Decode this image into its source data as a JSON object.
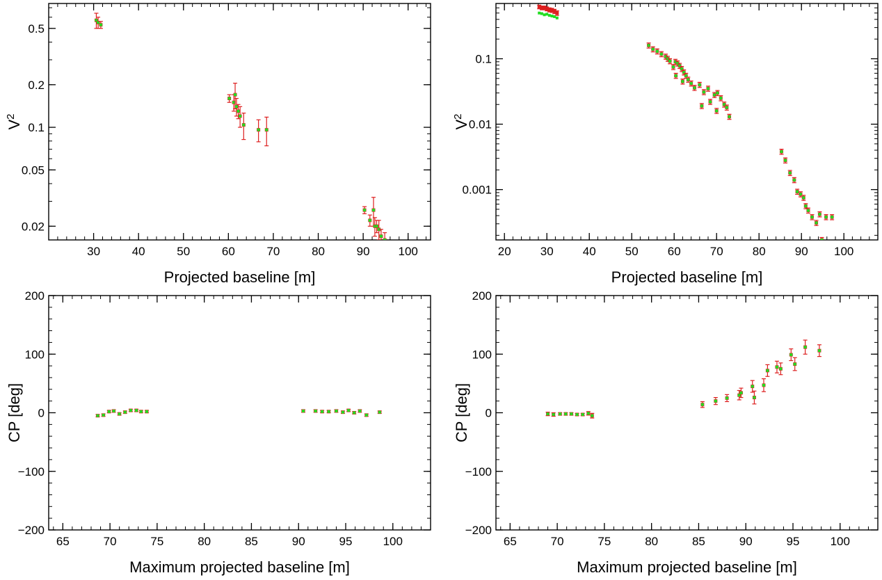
{
  "colors": {
    "model": "#22dd22",
    "observed": "#dd1f1f",
    "axes": "#000000"
  },
  "chart_data": [
    {
      "type": "scatter",
      "panel": "top-left",
      "xlabel": "Projected baseline [m]",
      "ylabel": "V²",
      "ylabel_text": "V",
      "ylabel_sup": "2",
      "yscale": "log",
      "xlim": [
        20,
        105
      ],
      "ylim": [
        0.016,
        0.75
      ],
      "xticks": [
        30,
        40,
        50,
        60,
        70,
        80,
        90,
        100
      ],
      "xtick_labels": [
        "30",
        "40",
        "50",
        "60",
        "70",
        "80",
        "90",
        "100"
      ],
      "yticks": [
        0.02,
        0.05,
        0.1,
        0.2,
        0.5
      ],
      "ytick_labels": [
        "0.02",
        "0.05",
        "0.1",
        "0.2",
        "0.5"
      ],
      "series": [
        {
          "points": [
            {
              "x": 30.6,
              "y": 0.57,
              "err": 0.07
            },
            {
              "x": 31.0,
              "y": 0.55,
              "err": 0.05
            },
            {
              "x": 31.6,
              "y": 0.53,
              "err": 0.03
            },
            {
              "x": 60.2,
              "y": 0.16,
              "err": 0.01
            },
            {
              "x": 61.2,
              "y": 0.15,
              "err": 0.02
            },
            {
              "x": 61.5,
              "y": 0.17,
              "err": 0.035
            },
            {
              "x": 61.8,
              "y": 0.14,
              "err": 0.02
            },
            {
              "x": 62.2,
              "y": 0.13,
              "err": 0.015
            },
            {
              "x": 62.6,
              "y": 0.12,
              "err": 0.02
            },
            {
              "x": 63.4,
              "y": 0.104,
              "err": 0.022
            },
            {
              "x": 66.7,
              "y": 0.096,
              "err": 0.017
            },
            {
              "x": 68.5,
              "y": 0.096,
              "err": 0.022
            },
            {
              "x": 90.3,
              "y": 0.026,
              "err": 0.0015
            },
            {
              "x": 91.5,
              "y": 0.022,
              "err": 0.002
            },
            {
              "x": 92.3,
              "y": 0.026,
              "err": 0.006
            },
            {
              "x": 92.6,
              "y": 0.02,
              "err": 0.003
            },
            {
              "x": 93.0,
              "y": 0.02,
              "err": 0.002
            },
            {
              "x": 93.5,
              "y": 0.019,
              "err": 0.003
            },
            {
              "x": 94.0,
              "y": 0.017,
              "err": 0.002
            },
            {
              "x": 94.8,
              "y": 0.016,
              "err": 0.002
            }
          ]
        }
      ]
    },
    {
      "type": "scatter",
      "panel": "top-right",
      "xlabel": "Projected baseline [m]",
      "ylabel": "V²",
      "ylabel_text": "V",
      "ylabel_sup": "2",
      "yscale": "log",
      "xlim": [
        18,
        108
      ],
      "ylim": [
        0.00017,
        0.7
      ],
      "xticks": [
        20,
        30,
        40,
        50,
        60,
        70,
        80,
        90,
        100
      ],
      "xtick_labels": [
        "20",
        "30",
        "40",
        "50",
        "60",
        "70",
        "80",
        "90",
        "100"
      ],
      "yticks": [
        0.001,
        0.01,
        0.1
      ],
      "ytick_labels": [
        "0.001",
        "0.01",
        "0.1"
      ],
      "series": [
        {
          "points": [
            {
              "x": 28.2,
              "y": 0.62,
              "err": 0.04,
              "mx": 28.2,
              "my": 0.5
            },
            {
              "x": 28.8,
              "y": 0.6,
              "err": 0.04,
              "mx": 28.8,
              "my": 0.49
            },
            {
              "x": 29.4,
              "y": 0.6,
              "err": 0.04,
              "mx": 29.4,
              "my": 0.47
            },
            {
              "x": 30.0,
              "y": 0.58,
              "err": 0.04,
              "mx": 30.0,
              "my": 0.48
            },
            {
              "x": 30.6,
              "y": 0.56,
              "err": 0.04,
              "mx": 30.6,
              "my": 0.46
            },
            {
              "x": 31.2,
              "y": 0.55,
              "err": 0.04,
              "mx": 31.2,
              "my": 0.45
            },
            {
              "x": 31.8,
              "y": 0.53,
              "err": 0.04,
              "mx": 31.8,
              "my": 0.44
            },
            {
              "x": 32.4,
              "y": 0.5,
              "err": 0.04,
              "mx": 32.4,
              "my": 0.42
            },
            {
              "x": 54.0,
              "y": 0.16
            },
            {
              "x": 55.0,
              "y": 0.14
            },
            {
              "x": 56.0,
              "y": 0.13
            },
            {
              "x": 57.0,
              "y": 0.118
            },
            {
              "x": 58.0,
              "y": 0.108
            },
            {
              "x": 58.5,
              "y": 0.1
            },
            {
              "x": 59.0,
              "y": 0.092
            },
            {
              "x": 59.8,
              "y": 0.075
            },
            {
              "x": 60.3,
              "y": 0.09
            },
            {
              "x": 60.8,
              "y": 0.085
            },
            {
              "x": 61.3,
              "y": 0.078
            },
            {
              "x": 61.8,
              "y": 0.07
            },
            {
              "x": 62.3,
              "y": 0.062
            },
            {
              "x": 62.8,
              "y": 0.055
            },
            {
              "x": 63.3,
              "y": 0.048
            },
            {
              "x": 64.0,
              "y": 0.042
            },
            {
              "x": 60.4,
              "y": 0.055
            },
            {
              "x": 62.0,
              "y": 0.045
            },
            {
              "x": 64.8,
              "y": 0.036
            },
            {
              "x": 66.0,
              "y": 0.04
            },
            {
              "x": 67.0,
              "y": 0.031
            },
            {
              "x": 68.0,
              "y": 0.035
            },
            {
              "x": 69.5,
              "y": 0.028
            },
            {
              "x": 70.2,
              "y": 0.03
            },
            {
              "x": 71.0,
              "y": 0.025
            },
            {
              "x": 71.8,
              "y": 0.02
            },
            {
              "x": 72.4,
              "y": 0.018
            },
            {
              "x": 66.5,
              "y": 0.019
            },
            {
              "x": 68.5,
              "y": 0.022
            },
            {
              "x": 70.0,
              "y": 0.016
            },
            {
              "x": 73.0,
              "y": 0.013
            },
            {
              "x": 85.3,
              "y": 0.0038
            },
            {
              "x": 86.2,
              "y": 0.0028
            },
            {
              "x": 87.3,
              "y": 0.0018
            },
            {
              "x": 88.3,
              "y": 0.0014
            },
            {
              "x": 89.0,
              "y": 0.00093
            },
            {
              "x": 89.8,
              "y": 0.00085
            },
            {
              "x": 90.5,
              "y": 0.00075
            },
            {
              "x": 91.0,
              "y": 0.00056
            },
            {
              "x": 91.6,
              "y": 0.00048
            },
            {
              "x": 92.5,
              "y": 0.00038
            },
            {
              "x": 93.5,
              "y": 0.00031
            },
            {
              "x": 94.3,
              "y": 0.00042
            },
            {
              "x": 94.8,
              "y": 0.00017
            },
            {
              "x": 95.8,
              "y": 0.00038
            },
            {
              "x": 97.2,
              "y": 0.00038
            }
          ]
        }
      ]
    },
    {
      "type": "scatter",
      "panel": "bottom-left",
      "xlabel": "Maximum projected baseline [m]",
      "ylabel": "CP [deg]",
      "yscale": "linear",
      "xlim": [
        63.5,
        104
      ],
      "ylim": [
        -200,
        200
      ],
      "xticks": [
        65,
        70,
        75,
        80,
        85,
        90,
        95,
        100
      ],
      "xtick_labels": [
        "65",
        "70",
        "75",
        "80",
        "85",
        "90",
        "95",
        "100"
      ],
      "yticks": [
        -200,
        -100,
        0,
        100,
        200
      ],
      "ytick_labels": [
        "−200",
        "−100",
        "0",
        "100",
        "200"
      ],
      "series": [
        {
          "points": [
            {
              "x": 68.7,
              "y": -5,
              "err": 2
            },
            {
              "x": 69.3,
              "y": -4,
              "err": 2
            },
            {
              "x": 69.9,
              "y": 2,
              "err": 2
            },
            {
              "x": 70.4,
              "y": 3,
              "err": 2
            },
            {
              "x": 71.0,
              "y": -2,
              "err": 2
            },
            {
              "x": 71.6,
              "y": 1,
              "err": 2
            },
            {
              "x": 72.2,
              "y": 4,
              "err": 2
            },
            {
              "x": 72.8,
              "y": 4,
              "err": 2
            },
            {
              "x": 73.3,
              "y": 2,
              "err": 2
            },
            {
              "x": 73.9,
              "y": 2,
              "err": 2
            },
            {
              "x": 90.5,
              "y": 3,
              "err": 2
            },
            {
              "x": 91.8,
              "y": 3,
              "err": 2
            },
            {
              "x": 92.5,
              "y": 2,
              "err": 2
            },
            {
              "x": 93.2,
              "y": 2,
              "err": 2
            },
            {
              "x": 94.0,
              "y": 3,
              "err": 2
            },
            {
              "x": 94.7,
              "y": 1,
              "err": 2
            },
            {
              "x": 95.3,
              "y": 4,
              "err": 2
            },
            {
              "x": 95.9,
              "y": 0,
              "err": 2
            },
            {
              "x": 96.5,
              "y": 3,
              "err": 2
            },
            {
              "x": 97.2,
              "y": -4,
              "err": 2
            },
            {
              "x": 98.6,
              "y": 1,
              "err": 2
            }
          ]
        }
      ]
    },
    {
      "type": "scatter",
      "panel": "bottom-right",
      "xlabel": "Maximum projected baseline [m]",
      "ylabel": "CP [deg]",
      "yscale": "linear",
      "xlim": [
        63.5,
        104
      ],
      "ylim": [
        -200,
        200
      ],
      "xticks": [
        65,
        70,
        75,
        80,
        85,
        90,
        95,
        100
      ],
      "xtick_labels": [
        "65",
        "70",
        "75",
        "80",
        "85",
        "90",
        "95",
        "100"
      ],
      "yticks": [
        -200,
        -100,
        0,
        100,
        200
      ],
      "ytick_labels": [
        "−200",
        "−100",
        "0",
        "100",
        "200"
      ],
      "series": [
        {
          "points": [
            {
              "x": 69.0,
              "y": -2,
              "err": 3
            },
            {
              "x": 69.6,
              "y": -3,
              "err": 3
            },
            {
              "x": 70.3,
              "y": -2,
              "err": 2
            },
            {
              "x": 70.9,
              "y": -2,
              "err": 2
            },
            {
              "x": 71.5,
              "y": -2,
              "err": 2
            },
            {
              "x": 72.1,
              "y": -3,
              "err": 2
            },
            {
              "x": 72.7,
              "y": -3,
              "err": 2
            },
            {
              "x": 73.3,
              "y": -1,
              "err": 3
            },
            {
              "x": 73.7,
              "y": -5,
              "err": 4
            },
            {
              "x": 85.4,
              "y": 14,
              "err": 5
            },
            {
              "x": 86.8,
              "y": 20,
              "err": 6
            },
            {
              "x": 88.0,
              "y": 25,
              "err": 6
            },
            {
              "x": 89.3,
              "y": 30,
              "err": 8
            },
            {
              "x": 89.5,
              "y": 34,
              "err": 8
            },
            {
              "x": 90.7,
              "y": 45,
              "err": 10
            },
            {
              "x": 90.9,
              "y": 26,
              "err": 11
            },
            {
              "x": 91.9,
              "y": 47,
              "err": 11
            },
            {
              "x": 92.3,
              "y": 72,
              "err": 10
            },
            {
              "x": 93.3,
              "y": 78,
              "err": 10
            },
            {
              "x": 93.7,
              "y": 75,
              "err": 10
            },
            {
              "x": 94.8,
              "y": 99,
              "err": 10
            },
            {
              "x": 95.2,
              "y": 83,
              "err": 11
            },
            {
              "x": 96.3,
              "y": 112,
              "err": 12
            },
            {
              "x": 97.8,
              "y": 106,
              "err": 10
            }
          ]
        }
      ]
    }
  ]
}
